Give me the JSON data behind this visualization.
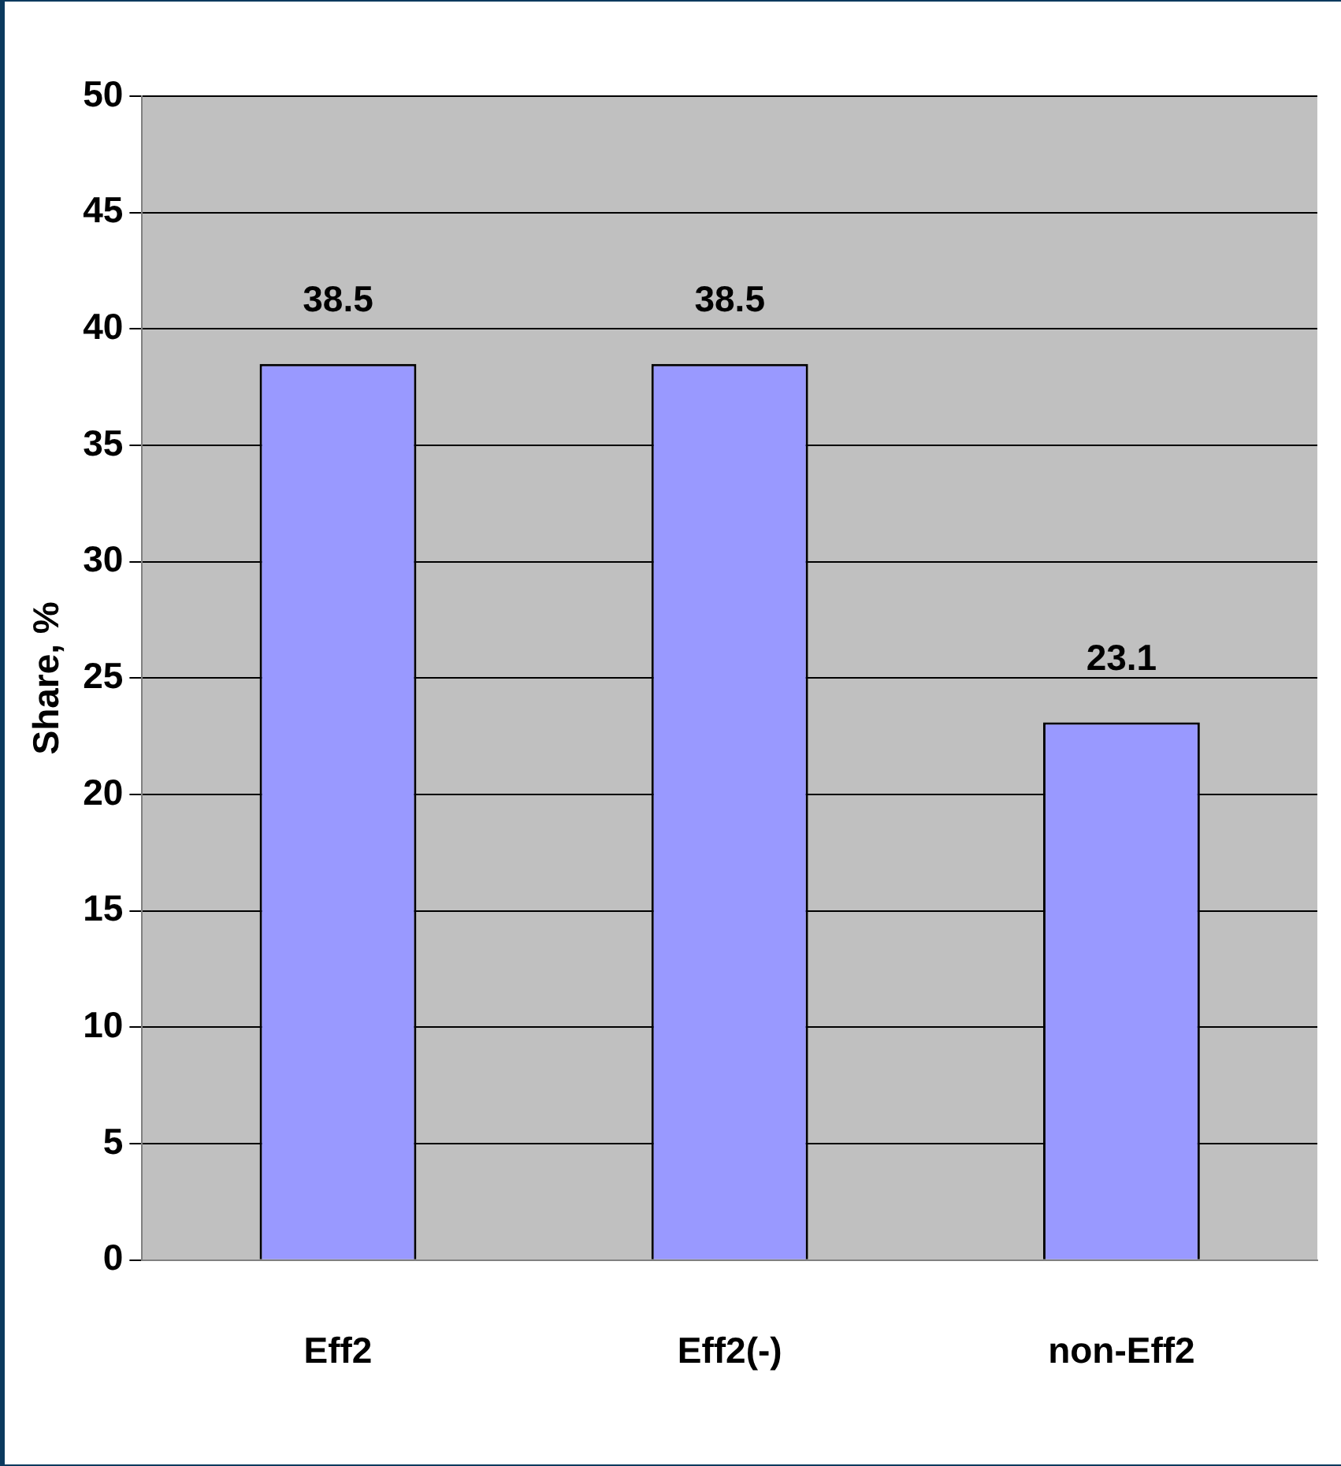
{
  "chart_data": {
    "type": "bar",
    "ylabel": "Share, %",
    "categories": [
      "Eff2",
      "Eff2(-)",
      "non-Eff2"
    ],
    "values": [
      38.5,
      38.5,
      23.1
    ],
    "color": "#9999ff",
    "ylim": [
      0,
      50
    ],
    "yticks": [
      0,
      5,
      10,
      15,
      20,
      25,
      30,
      35,
      40,
      45,
      50
    ],
    "grid": "y",
    "data_labels": true,
    "legend": false
  }
}
